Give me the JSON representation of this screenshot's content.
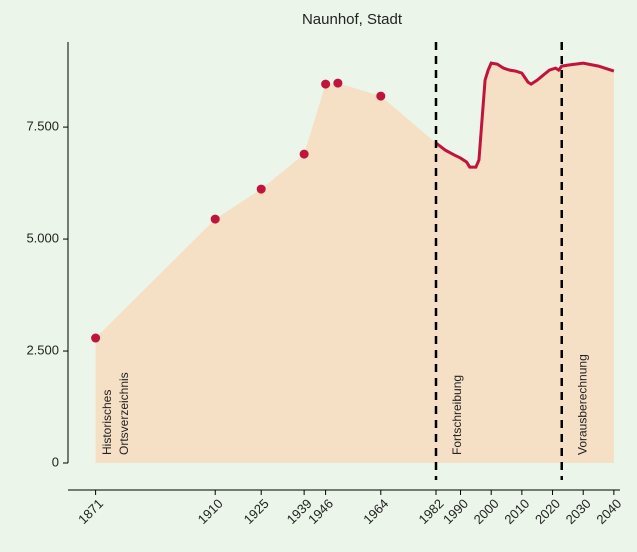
{
  "chart_data": {
    "type": "area",
    "title": "Naunhof, Stadt",
    "series": [
      {
        "kind": "scatter",
        "color": "#c0143c",
        "x": [
          1871,
          1910,
          1925,
          1939,
          1946,
          1950,
          1964
        ],
        "values": [
          2790,
          5446,
          6116,
          6897,
          8460,
          8482,
          8192
        ]
      },
      {
        "kind": "line",
        "color": "#c0143c",
        "x": [
          1982,
          1985,
          1988,
          1990,
          1992,
          1993,
          1995,
          1996,
          1997,
          1998,
          1999,
          2000,
          2002,
          2004,
          2006,
          2008,
          2010,
          2012,
          2013,
          2015,
          2017,
          2019,
          2021,
          2022,
          2023,
          2025,
          2030,
          2035,
          2040
        ],
        "values": [
          7143,
          6987,
          6875,
          6808,
          6719,
          6607,
          6607,
          6763,
          7656,
          8549,
          8772,
          8929,
          8906,
          8817,
          8772,
          8750,
          8705,
          8504,
          8460,
          8549,
          8661,
          8772,
          8817,
          8772,
          8862,
          8884,
          8929,
          8862,
          8750
        ]
      }
    ],
    "area_color": "#f5dfc5",
    "vlines": [
      1982,
      2023
    ],
    "annotations": [
      [
        "Historisches",
        "Ortsverzeichnis"
      ],
      [
        "Fortschreibung"
      ],
      [
        "Vorausberechnung"
      ]
    ],
    "xlim": [
      1862,
      2042
    ],
    "ylim": [
      0,
      9400
    ],
    "xticks": [
      1871,
      1910,
      1925,
      1939,
      1946,
      1964,
      1982,
      1990,
      2000,
      2010,
      2020,
      2030,
      2040
    ],
    "yticks": [
      0,
      {
        "value": 2500,
        "label": "2.500"
      },
      {
        "value": 5000,
        "label": "5.000"
      },
      {
        "value": 7500,
        "label": "7.500"
      }
    ]
  }
}
